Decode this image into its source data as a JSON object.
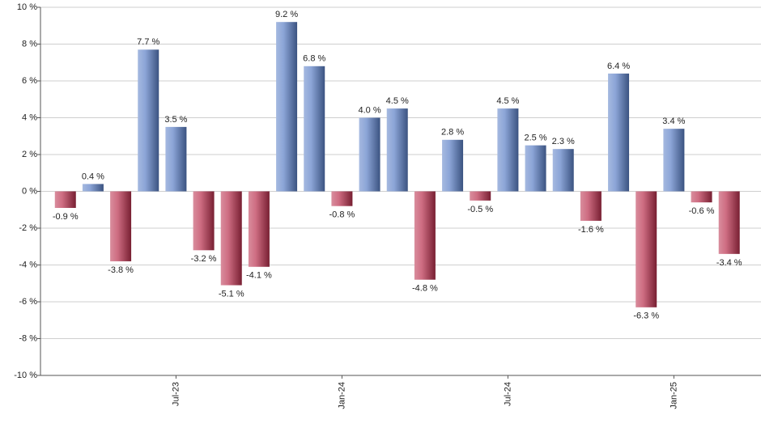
{
  "chart_data": {
    "type": "bar",
    "categories": [
      null,
      null,
      null,
      null,
      "Jul-23",
      null,
      null,
      null,
      null,
      null,
      "Jan-24",
      null,
      null,
      null,
      null,
      null,
      "Jul-24",
      null,
      null,
      null,
      null,
      null,
      "Jan-25",
      null,
      null
    ],
    "values": [
      -0.9,
      0.4,
      -3.8,
      7.7,
      3.5,
      -3.2,
      -5.1,
      -4.1,
      9.2,
      6.8,
      -0.8,
      4.0,
      4.5,
      -4.8,
      2.8,
      -0.5,
      4.5,
      2.5,
      2.3,
      -1.6,
      6.4,
      -6.3,
      3.4,
      -0.6,
      -3.4
    ],
    "value_labels": [
      "-0.9 %",
      "0.4 %",
      "-3.8 %",
      "7.7 %",
      "3.5 %",
      "-3.2 %",
      "-5.1 %",
      "-4.1 %",
      "9.2 %",
      "6.8 %",
      "-0.8 %",
      "4.0 %",
      "4.5 %",
      "-4.8 %",
      "2.8 %",
      "-0.5 %",
      "4.5 %",
      "2.5 %",
      "2.3 %",
      "-1.6 %",
      "6.4 %",
      "-6.3 %",
      "3.4 %",
      "-0.6 %",
      "-3.4 %"
    ],
    "positive_color": "#5b7fc6",
    "negative_color": "#b92f4d",
    "ylim": [
      -10,
      10
    ],
    "yticks": [
      {
        "value": -10,
        "label": "-10 %"
      },
      {
        "value": -8,
        "label": "-8 %"
      },
      {
        "value": -6,
        "label": "-6 %"
      },
      {
        "value": -4,
        "label": "-4 %"
      },
      {
        "value": -2,
        "label": "-2 %"
      },
      {
        "value": 0,
        "label": "0 %"
      },
      {
        "value": 2,
        "label": "2 %"
      },
      {
        "value": 4,
        "label": "4 %"
      },
      {
        "value": 6,
        "label": "6 %"
      },
      {
        "value": 8,
        "label": "8 %"
      },
      {
        "value": 10,
        "label": "10 %"
      }
    ],
    "grid": true
  }
}
